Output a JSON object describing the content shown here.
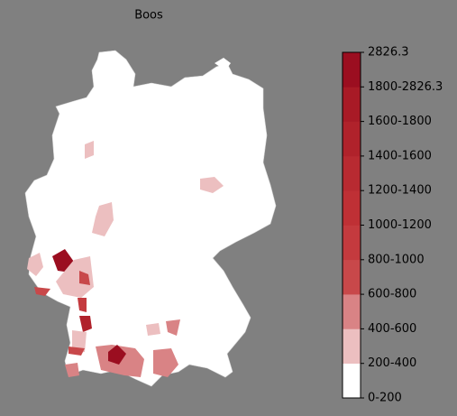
{
  "title": "Boos",
  "legend": {
    "labels": [
      "0-200",
      "200-400",
      "400-600",
      "600-800",
      "800-1000",
      "1000-1200",
      "1200-1400",
      "1400-1600",
      "1600-1800",
      "1800-2826.3",
      "2826.3"
    ],
    "colors": [
      "#ffffff",
      "#ecbfc0",
      "#d98385",
      "#c8484a",
      "#c43a3e",
      "#bf3035",
      "#b82a31",
      "#b0222b",
      "#a81a26",
      "#9b0e20"
    ]
  }
}
